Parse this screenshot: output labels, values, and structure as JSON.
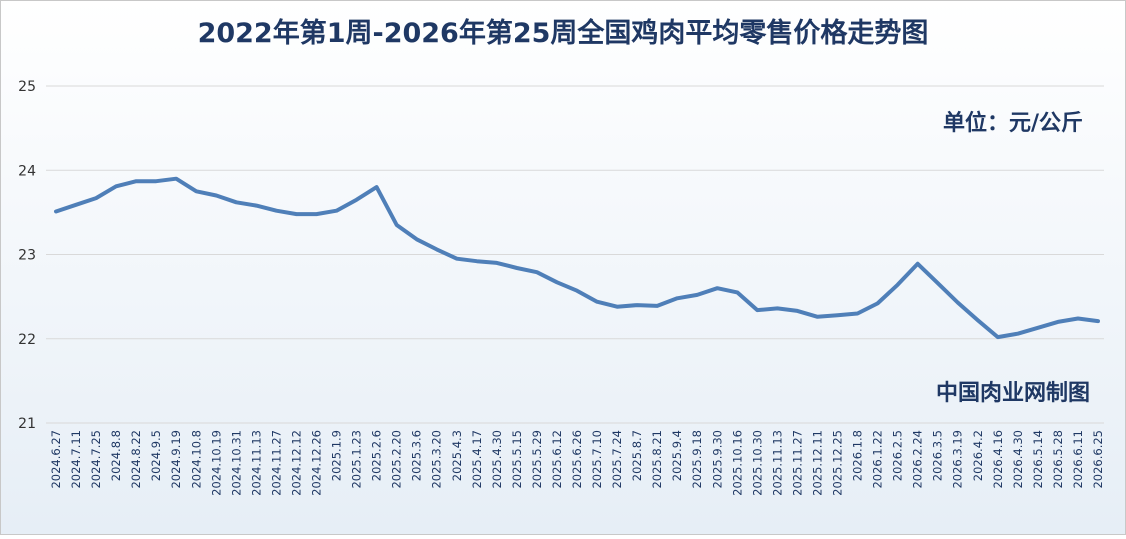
{
  "chart_data": {
    "type": "line",
    "title": "2022年第1周-2026年第25周全国鸡肉平均零售价格走势图",
    "unit_label": "单位：元/公斤",
    "source": "中国肉业网制图",
    "categories": [
      "2024.6.27",
      "2024.7.11",
      "2024.7.25",
      "2024.8.8",
      "2024.8.22",
      "2024.9.5",
      "2024.9.19",
      "2024.10.8",
      "2024.10.19",
      "2024.10.31",
      "2024.11.13",
      "2024.11.27",
      "2024.12.12",
      "2024.12.26",
      "2025.1.9",
      "2025.1.23",
      "2025.2.6",
      "2025.2.20",
      "2025.3.6",
      "2025.3.20",
      "2025.4.3",
      "2025.4.17",
      "2025.4.30",
      "2025.5.15",
      "2025.5.29",
      "2025.6.12",
      "2025.6.26",
      "2025.7.10",
      "2025.7.24",
      "2025.8.7",
      "2025.8.21",
      "2025.9.4",
      "2025.9.18",
      "2025.9.30",
      "2025.10.16",
      "2025.10.30",
      "2025.11.13",
      "2025.11.27",
      "2025.12.11",
      "2025.12.25",
      "2026.1.8",
      "2026.1.22",
      "2026.2.5",
      "2026.2.24",
      "2026.3.5",
      "2026.3.19",
      "2026.4.2",
      "2026.4.16",
      "2026.4.30",
      "2026.5.14",
      "2026.5.28",
      "2026.6.11",
      "2026.6.25"
    ],
    "values": [
      23.51,
      23.59,
      23.67,
      23.81,
      23.87,
      23.87,
      23.9,
      23.75,
      23.7,
      23.62,
      23.58,
      23.52,
      23.48,
      23.48,
      23.52,
      23.65,
      23.8,
      23.35,
      23.18,
      23.06,
      22.95,
      22.92,
      22.9,
      22.84,
      22.79,
      22.67,
      22.57,
      22.44,
      22.38,
      22.4,
      22.39,
      22.48,
      22.52,
      22.6,
      22.55,
      22.34,
      22.36,
      22.33,
      22.26,
      22.28,
      22.3,
      22.42,
      22.64,
      22.89,
      22.66,
      22.43,
      22.22,
      22.02,
      22.06,
      22.13,
      22.2,
      22.24,
      22.21
    ],
    "color": "#4f7fb8",
    "ylim": [
      21,
      25
    ],
    "yticks": [
      21,
      22,
      23,
      24,
      25
    ],
    "grid": true
  }
}
